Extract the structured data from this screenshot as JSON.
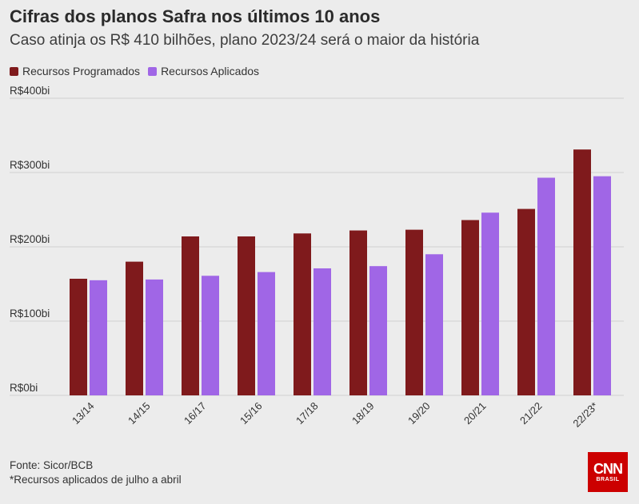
{
  "header": {
    "title": "Cifras dos planos Safra nos últimos 10 anos",
    "subtitle": "Caso atinja os R$ 410 bilhões, plano 2023/24 será o maior da história"
  },
  "footer": {
    "source": "Fonte: Sicor/BCB",
    "note": "*Recursos aplicados de julho a abril"
  },
  "logo": {
    "main": "CNN",
    "sub": "BRASIL"
  },
  "colors": {
    "programados": "#7f1a1c",
    "aplicados": "#a066e6",
    "background": "#ececec",
    "grid": "#cfcfcf",
    "logo": "#cc0000"
  },
  "chart_data": {
    "type": "bar",
    "categories": [
      "13/14",
      "14/15",
      "16/17",
      "15/16",
      "17/18",
      "18/19",
      "19/20",
      "20/21",
      "21/22",
      "22/23*"
    ],
    "series": [
      {
        "name": "Recursos Programados",
        "values": [
          157,
          180,
          214,
          214,
          218,
          222,
          223,
          236,
          251,
          331
        ]
      },
      {
        "name": "Recursos Aplicados",
        "values": [
          155,
          156,
          161,
          166,
          171,
          174,
          190,
          246,
          293,
          295
        ]
      }
    ],
    "y_ticks": [
      {
        "value": 0,
        "label": "R$0bi"
      },
      {
        "value": 100,
        "label": "R$100bi"
      },
      {
        "value": 200,
        "label": "R$200bi"
      },
      {
        "value": 300,
        "label": "R$300bi"
      },
      {
        "value": 400,
        "label": "R$400bi"
      }
    ],
    "ylim": [
      0,
      400
    ],
    "grid": true,
    "legend_position": "top-left",
    "xlabel": "",
    "ylabel": ""
  }
}
